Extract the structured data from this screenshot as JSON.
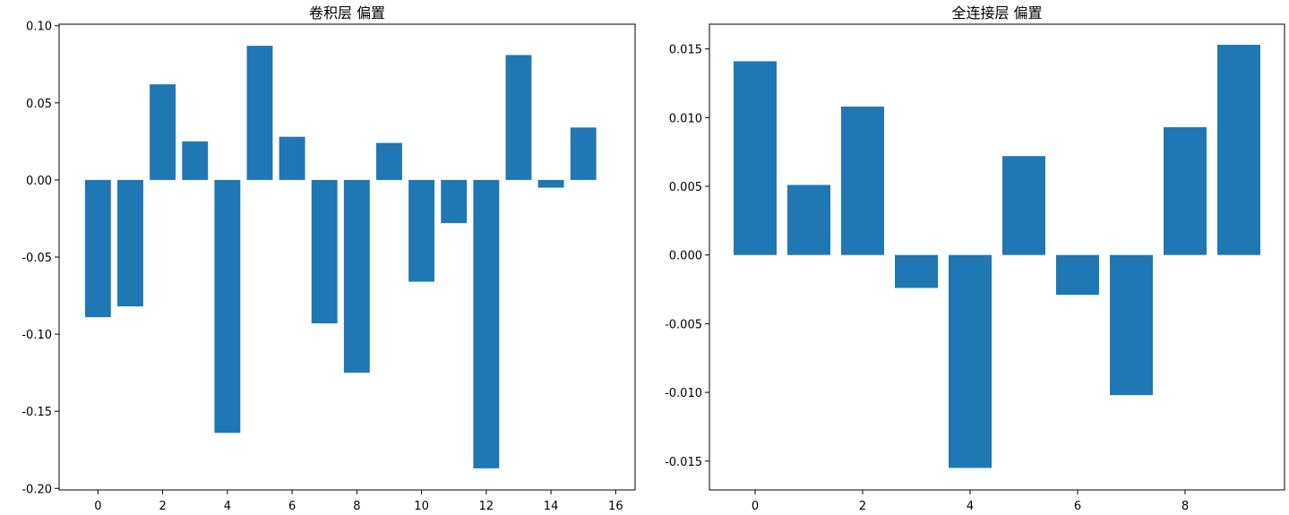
{
  "chart_data": [
    {
      "type": "bar",
      "title": "卷积层 偏置",
      "xlabel": "",
      "ylabel": "",
      "color": "#1f77b4",
      "x": [
        0,
        1,
        2,
        3,
        4,
        5,
        6,
        7,
        8,
        9,
        10,
        11,
        12,
        13,
        14,
        15
      ],
      "values": [
        -0.089,
        -0.082,
        0.062,
        0.025,
        -0.164,
        0.087,
        0.028,
        -0.093,
        -0.125,
        0.024,
        -0.066,
        -0.028,
        -0.187,
        0.081,
        -0.005,
        0.034
      ],
      "xticks": [
        0,
        2,
        4,
        6,
        8,
        10,
        12,
        14,
        16
      ],
      "xtick_labels": [
        "0",
        "2",
        "4",
        "6",
        "8",
        "10",
        "12",
        "14",
        "16"
      ],
      "yticks": [
        -0.2,
        -0.15,
        -0.1,
        -0.05,
        0.0,
        0.05,
        0.1
      ],
      "ytick_labels": [
        "-0.20",
        "-0.15",
        "-0.10",
        "-0.05",
        "0.00",
        "0.05",
        "0.10"
      ],
      "xlim": [
        -1.2,
        16.6
      ],
      "ylim": [
        -0.201,
        0.101
      ]
    },
    {
      "type": "bar",
      "title": "全连接层 偏置",
      "xlabel": "",
      "ylabel": "",
      "color": "#1f77b4",
      "x": [
        0,
        1,
        2,
        3,
        4,
        5,
        6,
        7,
        8,
        9
      ],
      "values": [
        0.0141,
        0.0051,
        0.0108,
        -0.0024,
        -0.0155,
        0.0072,
        -0.0029,
        -0.0102,
        0.0093,
        0.0153
      ],
      "xticks": [
        0,
        2,
        4,
        6,
        8
      ],
      "xtick_labels": [
        "0",
        "2",
        "4",
        "6",
        "8"
      ],
      "yticks": [
        -0.015,
        -0.01,
        -0.005,
        0.0,
        0.005,
        0.01,
        0.015
      ],
      "ytick_labels": [
        "-0.015",
        "-0.010",
        "-0.005",
        "0.000",
        "0.005",
        "0.010",
        "0.015"
      ],
      "xlim": [
        -0.85,
        9.85
      ],
      "ylim": [
        -0.0171,
        0.0168
      ]
    }
  ]
}
